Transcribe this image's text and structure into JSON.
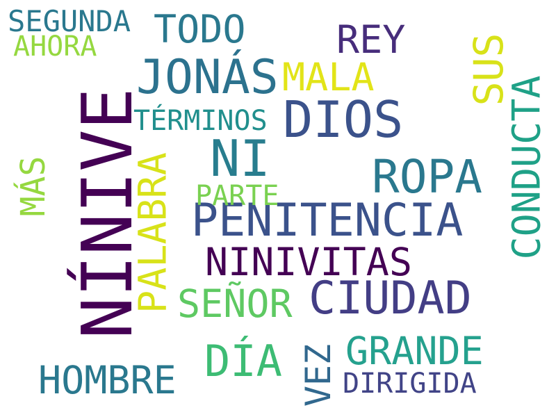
{
  "words": [
    {
      "id": "ninive",
      "text": "NÍNIVE",
      "color": "#440154"
    },
    {
      "id": "penitencia",
      "text": "PENITENCIA",
      "color": "#3b528b"
    },
    {
      "id": "dios",
      "text": "DIOS",
      "color": "#3b528b"
    },
    {
      "id": "ciudad",
      "text": "CIUDAD",
      "color": "#433e85"
    },
    {
      "id": "jonas",
      "text": "JONÁS",
      "color": "#2c728e"
    },
    {
      "id": "ni",
      "text": "NI",
      "color": "#287d8e"
    },
    {
      "id": "ropa",
      "text": "ROPA",
      "color": "#2a788e"
    },
    {
      "id": "ninivitas",
      "text": "NINIVITAS",
      "color": "#440154"
    },
    {
      "id": "conducta",
      "text": "CONDUCTA",
      "color": "#1fa187"
    },
    {
      "id": "todo",
      "text": "TODO",
      "color": "#2a788e"
    },
    {
      "id": "rey",
      "text": "REY",
      "color": "#472d7b"
    },
    {
      "id": "mala",
      "text": "MALA",
      "color": "#e2e418"
    },
    {
      "id": "sus",
      "text": "SUS",
      "color": "#d8e219"
    },
    {
      "id": "palabra",
      "text": "PALABRA",
      "color": "#d8e219"
    },
    {
      "id": "senor",
      "text": "SEÑOR",
      "color": "#5ec962"
    },
    {
      "id": "grande",
      "text": "GRANDE",
      "color": "#25a18e"
    },
    {
      "id": "dia",
      "text": "DÍA",
      "color": "#3dbc74"
    },
    {
      "id": "hombre",
      "text": "HOMBRE",
      "color": "#2a788e"
    },
    {
      "id": "vez",
      "text": "VEZ",
      "color": "#31688e"
    },
    {
      "id": "dirigida",
      "text": "DIRIGIDA",
      "color": "#414487"
    },
    {
      "id": "terminos",
      "text": "TÉRMINOS",
      "color": "#218f8d"
    },
    {
      "id": "parte",
      "text": "PARTE",
      "color": "#7ad151"
    },
    {
      "id": "mas",
      "text": "MÁS",
      "color": "#95d840"
    },
    {
      "id": "segunda",
      "text": "SEGUNDA",
      "color": "#2a788e"
    },
    {
      "id": "ahora",
      "text": "AHORA",
      "color": "#95d840"
    }
  ]
}
